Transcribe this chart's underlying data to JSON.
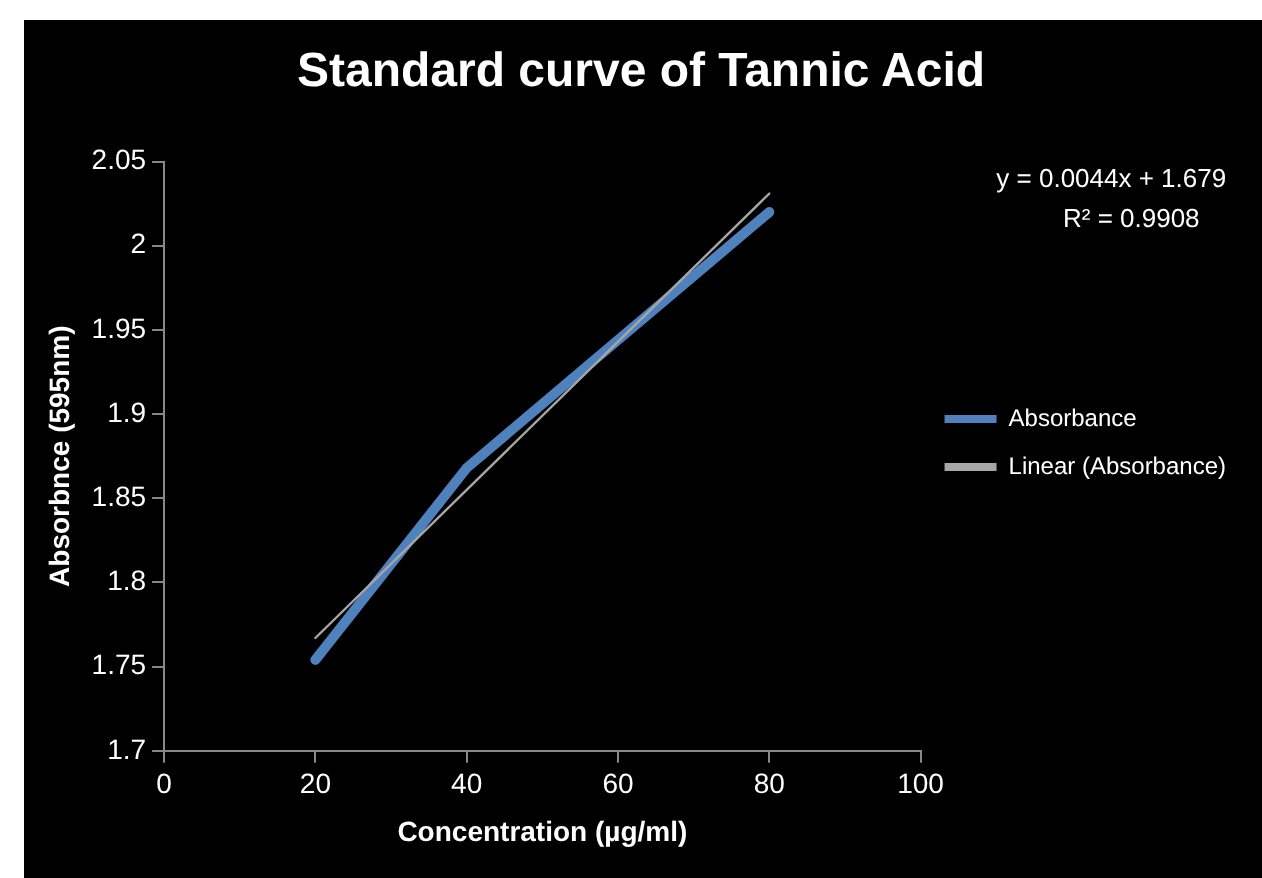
{
  "chart_data": {
    "type": "line",
    "title": "Standard curve of Tannic Acid",
    "xlabel": "Concentration (µg/ml)",
    "ylabel": "Absorbnce (595nm)",
    "x": [
      20,
      40,
      60,
      80
    ],
    "series": [
      {
        "name": "Absorbance",
        "color": "#4f81bd",
        "values": [
          1.754,
          1.868,
          1.944,
          2.02
        ]
      },
      {
        "name": "Linear (Absorbance)",
        "color": "#a6a6a6",
        "x": [
          20,
          80
        ],
        "values": [
          1.767,
          2.031
        ]
      }
    ],
    "xlim": [
      0,
      100
    ],
    "xticks": [
      0,
      20,
      40,
      60,
      80,
      100
    ],
    "ylim": [
      1.7,
      2.05
    ],
    "yticks": [
      1.7,
      1.75,
      1.8,
      1.85,
      1.9,
      1.95,
      2,
      2.05
    ],
    "annotations": [
      "y = 0.0044x + 1.679",
      "R² = 0.9908"
    ],
    "legend": "right",
    "grid": false,
    "marker": "none",
    "line_style": "solid"
  }
}
